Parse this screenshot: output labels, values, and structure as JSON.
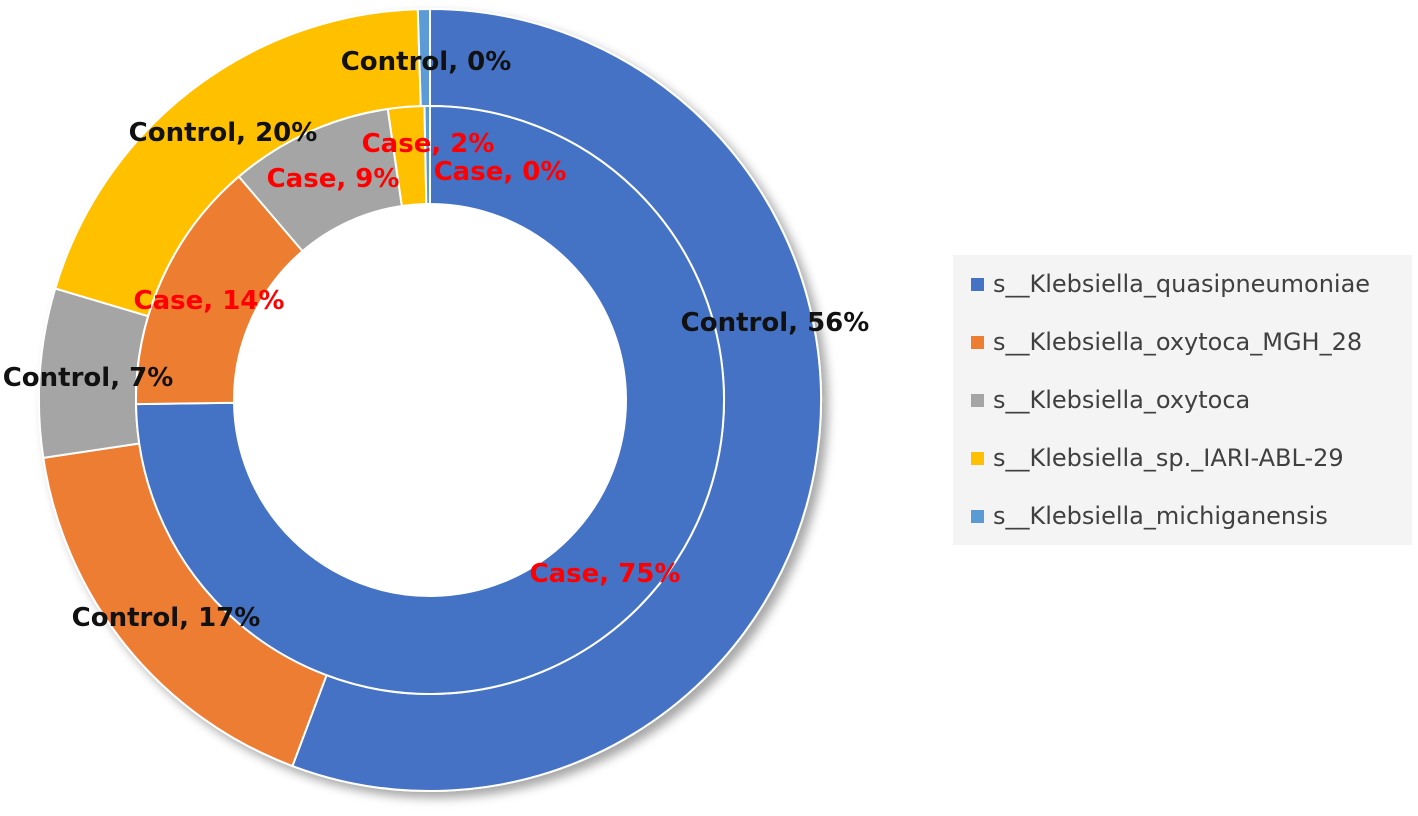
{
  "chart_data": {
    "type": "pie",
    "subtype": "double-doughnut",
    "categories": [
      "s__Klebsiella_quasipneumoniae",
      "s__Klebsiella_oxytoca_MGH_28",
      "s__Klebsiella_oxytoca",
      "s__Klebsiella_sp._IARI-ABL-29",
      "s__Klebsiella_michiganensis"
    ],
    "colors": [
      "#4472c4",
      "#ed7d31",
      "#a5a5a5",
      "#ffc000",
      "#5b9bd5"
    ],
    "series": [
      {
        "name": "Control",
        "ring": "outer",
        "values": [
          56,
          17,
          7,
          20,
          0.5
        ],
        "labels": [
          "Control, 56%",
          "Control, 17%",
          "Control, 7%",
          "Control, 20%",
          "Control, 0%"
        ]
      },
      {
        "name": "Case",
        "ring": "inner",
        "values": [
          75,
          14,
          9,
          2,
          0.3
        ],
        "labels": [
          "Case, 75%",
          "Case, 14%",
          "Case, 9%",
          "Case, 2%",
          "Case, 0%"
        ]
      }
    ],
    "legend_position": "right",
    "title": ""
  }
}
